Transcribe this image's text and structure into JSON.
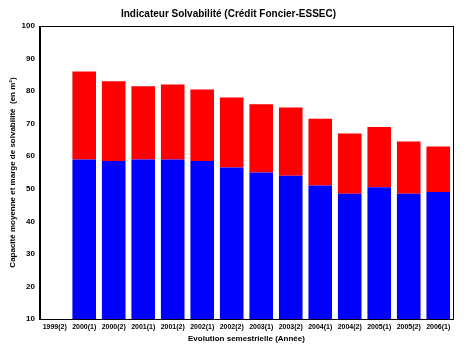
{
  "chart_data": {
    "type": "bar",
    "stacked": true,
    "title": "Indicateur Solvabilité (Crédit Foncier-ESSEC)",
    "x_label": "Evolution semestrielle (Année)",
    "y_label": "Capacité moyenne et marge de solvabilité  (en m²)",
    "categories": [
      "1999(2)",
      "2000(1)",
      "2000(2)",
      "2001(1)",
      "2001(2)",
      "2002(1)",
      "2002(2)",
      "2003(1)",
      "2003(2)",
      "2004(1)",
      "2004(2)",
      "2005(1)",
      "2005(2)",
      "2006(1)"
    ],
    "series": [
      {
        "color": "#0000ff",
        "values": [
          null,
          59,
          58.5,
          59,
          59,
          58.5,
          56.5,
          55,
          54,
          51,
          48.5,
          50.5,
          48.5,
          49
        ]
      },
      {
        "color": "#ff0000",
        "values": [
          null,
          27,
          24.5,
          22.5,
          23,
          22,
          21.5,
          21,
          21,
          20.5,
          18.5,
          18.5,
          16,
          14
        ]
      }
    ],
    "ylim": [
      10,
      100
    ],
    "yticks": [
      10,
      20,
      30,
      40,
      50,
      60,
      70,
      80,
      90,
      100
    ],
    "grid": false
  }
}
